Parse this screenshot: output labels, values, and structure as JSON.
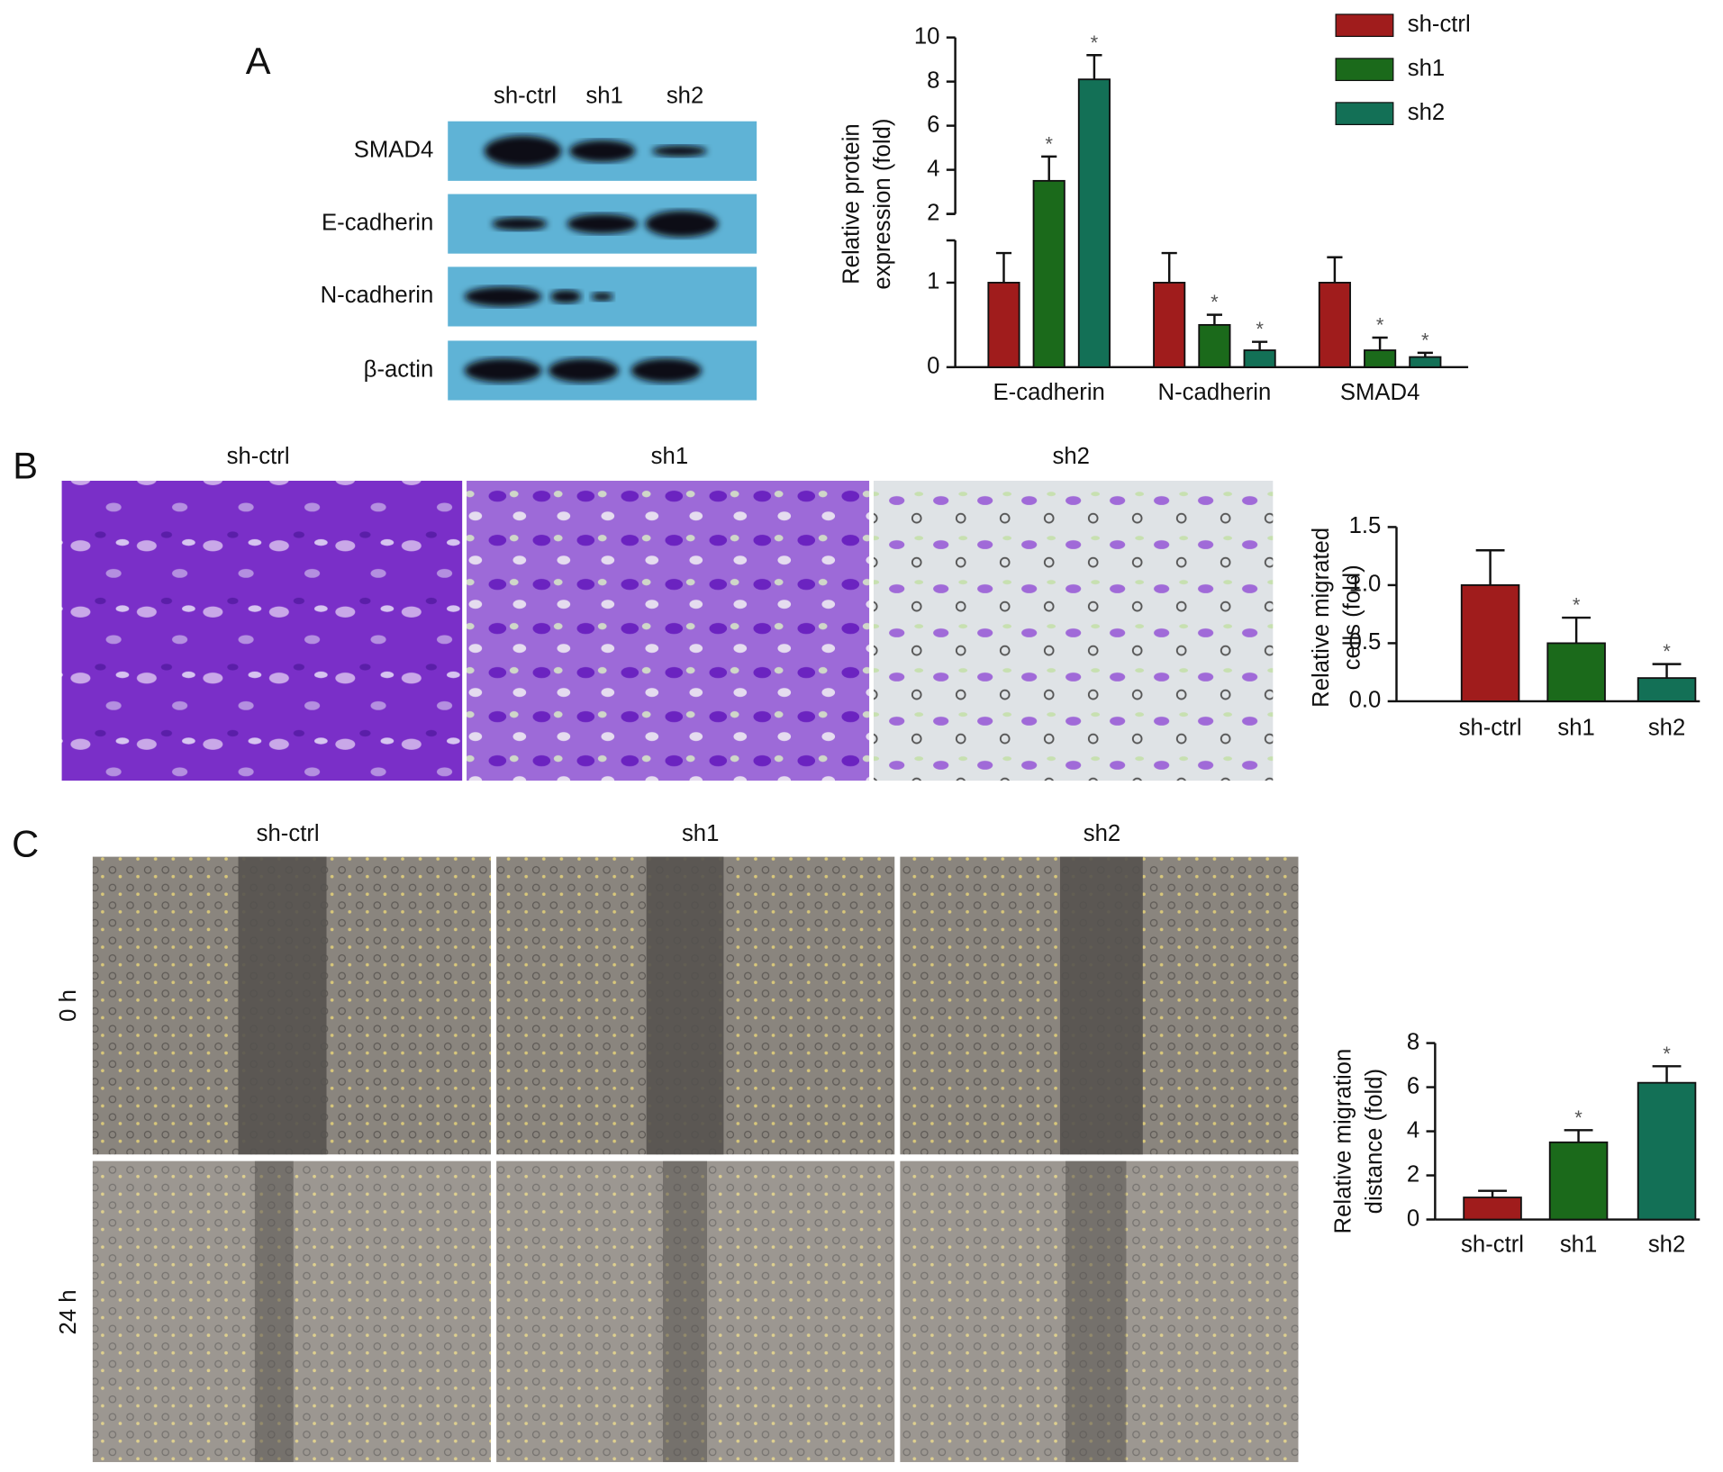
{
  "panel_labels": [
    "A",
    "B",
    "C"
  ],
  "blot": {
    "lanes": [
      "sh-ctrl",
      "sh1",
      "sh2"
    ],
    "proteins": [
      "SMAD4",
      "E-cadherin",
      "N-cadherin",
      "β-actin"
    ]
  },
  "migration_images": {
    "columns": [
      "sh-ctrl",
      "sh1",
      "sh2"
    ]
  },
  "wound_images": {
    "columns": [
      "sh-ctrl",
      "sh1",
      "sh2"
    ],
    "rows": [
      "0 h",
      "24 h"
    ]
  },
  "chart_data": [
    {
      "type": "grouped_bar",
      "ylabel": [
        "Relative protein",
        "expression (fold)"
      ],
      "categories": [
        "E-cadherin",
        "N-cadherin",
        "SMAD4"
      ],
      "series": [
        {
          "name": "sh-ctrl",
          "color": "#a01c1c",
          "values": [
            1,
            1,
            1
          ],
          "errors": [
            0.35,
            0.35,
            0.3
          ],
          "sig": [
            null,
            null,
            null
          ]
        },
        {
          "name": "sh1",
          "color": "#1b6a1b",
          "values": [
            3.5,
            0.5,
            0.2
          ],
          "errors": [
            1.1,
            0.12,
            0.15
          ],
          "sig": [
            "*",
            "*",
            "*"
          ]
        },
        {
          "name": "sh2",
          "color": "#137056",
          "values": [
            8.1,
            0.2,
            0.12
          ],
          "errors": [
            1.1,
            0.1,
            0.05
          ],
          "sig": [
            "*",
            "*",
            "*"
          ]
        }
      ],
      "ylim": [
        0,
        10
      ],
      "y_break": [
        1.5,
        2
      ],
      "yticks": [
        0,
        1,
        2,
        4,
        6,
        8,
        10
      ],
      "legend": "top-right"
    },
    {
      "type": "bar",
      "ylabel": [
        "Relative migrated",
        "cells (fold)"
      ],
      "categories": [
        "sh-ctrl",
        "sh1",
        "sh2"
      ],
      "colors": [
        "#a01c1c",
        "#1b6a1b",
        "#137056"
      ],
      "values": [
        1,
        0.5,
        0.2
      ],
      "errors": [
        0.3,
        0.22,
        0.12
      ],
      "sig": [
        null,
        "*",
        "*"
      ],
      "ylim": [
        0,
        1.5
      ],
      "yticks": [
        {
          "value": 0,
          "label": "0.0"
        },
        {
          "value": 0.5,
          "label": "0.5"
        },
        {
          "value": 1,
          "label": "1.0"
        },
        {
          "value": 1.5,
          "label": "1.5"
        }
      ]
    },
    {
      "type": "bar",
      "ylabel": [
        "Relative migration",
        "distance (fold)"
      ],
      "categories": [
        "sh-ctrl",
        "sh1",
        "sh2"
      ],
      "colors": [
        "#a01c1c",
        "#1b6a1b",
        "#137056"
      ],
      "values": [
        1,
        3.5,
        6.2
      ],
      "errors": [
        0.3,
        0.55,
        0.75
      ],
      "sig": [
        null,
        "*",
        "*"
      ],
      "ylim": [
        0,
        8
      ],
      "yticks": [
        0,
        2,
        4,
        6,
        8
      ]
    }
  ]
}
